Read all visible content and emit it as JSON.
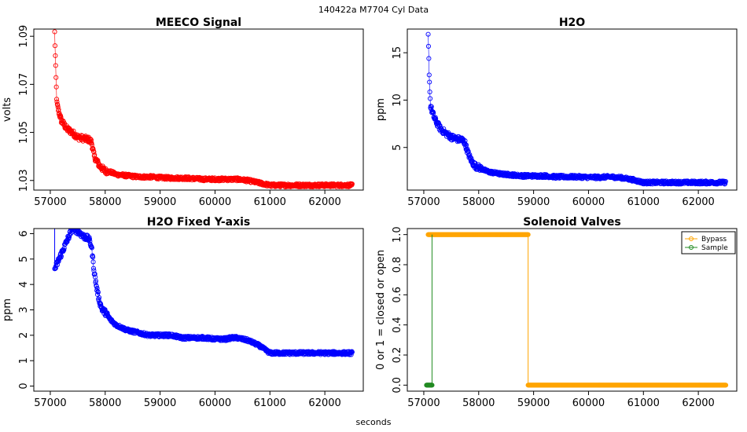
{
  "figure": {
    "suptitle": "140422a    M7704   Cyl Data",
    "xlabel": "seconds"
  },
  "chart_data": [
    {
      "id": "meeco",
      "type": "line",
      "marker": "open-circle",
      "title": "MEECO Signal",
      "xlabel": "",
      "ylabel": "volts",
      "color": "#ff0000",
      "xlim": [
        56700,
        62700
      ],
      "ylim": [
        1.026,
        1.093
      ],
      "xticks": [
        57000,
        58000,
        59000,
        60000,
        61000,
        62000
      ],
      "yticks": [
        1.03,
        1.05,
        1.07,
        1.09
      ],
      "ytick_labels": [
        "1.03",
        "1.05",
        "1.07",
        "1.09"
      ],
      "x": [
        57080,
        57100,
        57120,
        57150,
        57200,
        57300,
        57400,
        57500,
        57600,
        57700,
        57750,
        57800,
        57850,
        57900,
        57950,
        58000,
        58100,
        58200,
        58400,
        58600,
        58800,
        59000,
        59200,
        59400,
        59600,
        59800,
        60000,
        60200,
        60400,
        60600,
        60800,
        61000,
        61200,
        61400,
        61600,
        61800,
        62000,
        62200,
        62500
      ],
      "y": [
        1.0915,
        1.075,
        1.062,
        1.059,
        1.055,
        1.0515,
        1.05,
        1.048,
        1.0475,
        1.047,
        1.046,
        1.04,
        1.038,
        1.036,
        1.035,
        1.034,
        1.0335,
        1.0325,
        1.032,
        1.0315,
        1.0315,
        1.0312,
        1.031,
        1.031,
        1.0308,
        1.0305,
        1.0305,
        1.0305,
        1.0305,
        1.03,
        1.029,
        1.028,
        1.028,
        1.028,
        1.028,
        1.028,
        1.028,
        1.028,
        1.028
      ]
    },
    {
      "id": "h2o",
      "type": "line",
      "marker": "open-circle",
      "title": "H2O",
      "xlabel": "",
      "ylabel": "ppm",
      "color": "#0000ff",
      "xlim": [
        56700,
        62700
      ],
      "ylim": [
        0.5,
        17.5
      ],
      "xticks": [
        57000,
        58000,
        59000,
        60000,
        61000,
        62000
      ],
      "yticks": [
        5,
        10,
        15
      ],
      "ytick_labels": [
        "5",
        "10",
        "15"
      ],
      "x": [
        57080,
        57100,
        57120,
        57150,
        57200,
        57300,
        57400,
        57500,
        57600,
        57700,
        57750,
        57800,
        57850,
        57900,
        57950,
        58000,
        58100,
        58200,
        58400,
        58600,
        58800,
        59000,
        59200,
        59400,
        59600,
        59800,
        60000,
        60200,
        60400,
        60600,
        60800,
        61000,
        61200,
        61400,
        61600,
        61800,
        62000,
        62200,
        62500
      ],
      "y": [
        16.8,
        12.5,
        9.5,
        8.8,
        8.0,
        7.0,
        6.5,
        6.1,
        5.9,
        5.8,
        5.5,
        4.5,
        3.8,
        3.3,
        3.0,
        2.9,
        2.6,
        2.4,
        2.2,
        2.1,
        2.0,
        2.0,
        2.0,
        1.9,
        1.9,
        1.9,
        1.85,
        1.85,
        1.9,
        1.8,
        1.6,
        1.3,
        1.3,
        1.3,
        1.3,
        1.3,
        1.3,
        1.3,
        1.3
      ]
    },
    {
      "id": "h2o-fixed",
      "type": "line",
      "marker": "open-circle",
      "title": "H2O Fixed Y-axis",
      "xlabel": "",
      "ylabel": "ppm",
      "color": "#0000ff",
      "xlim": [
        56700,
        62700
      ],
      "ylim": [
        -0.2,
        6.2
      ],
      "xticks": [
        57000,
        58000,
        59000,
        60000,
        61000,
        62000
      ],
      "yticks": [
        0,
        1,
        2,
        3,
        4,
        5,
        6
      ],
      "ytick_labels": [
        "0",
        "1",
        "2",
        "3",
        "4",
        "5",
        "6"
      ],
      "x": [
        57080,
        57400,
        57500,
        57600,
        57700,
        57750,
        57800,
        57850,
        57900,
        57950,
        58000,
        58100,
        58200,
        58400,
        58600,
        58800,
        59000,
        59200,
        59400,
        59600,
        59800,
        60000,
        60200,
        60300,
        60400,
        60600,
        60800,
        61000,
        61200,
        61400,
        61600,
        61800,
        62000,
        62200,
        62500
      ],
      "y": [
        4.6,
        6.2,
        6.1,
        5.9,
        5.8,
        5.5,
        4.5,
        3.8,
        3.3,
        3.0,
        2.9,
        2.6,
        2.4,
        2.2,
        2.1,
        2.0,
        2.0,
        2.0,
        1.9,
        1.9,
        1.9,
        1.85,
        1.85,
        1.9,
        1.9,
        1.8,
        1.6,
        1.3,
        1.3,
        1.3,
        1.3,
        1.3,
        1.3,
        1.3,
        1.3
      ]
    },
    {
      "id": "solenoid",
      "type": "line",
      "marker": "open-circle",
      "title": "Solenoid Valves",
      "xlabel": "",
      "ylabel": "0 or 1 = closed or open",
      "xlim": [
        56700,
        62700
      ],
      "ylim": [
        -0.04,
        1.04
      ],
      "xticks": [
        57000,
        58000,
        59000,
        60000,
        61000,
        62000
      ],
      "yticks": [
        0.0,
        0.2,
        0.4,
        0.6,
        0.8,
        1.0
      ],
      "ytick_labels": [
        "0.0",
        "0.2",
        "0.4",
        "0.6",
        "0.8",
        "1.0"
      ],
      "legend_position": "top-right",
      "series": [
        {
          "name": "Bypass",
          "color": "#ffa500",
          "x": [
            57080,
            58900,
            58900,
            62500
          ],
          "y": [
            1,
            1,
            0,
            0
          ]
        },
        {
          "name": "Sample",
          "color": "#228b22",
          "x": [
            57050,
            57150,
            57150
          ],
          "y": [
            0,
            0,
            1
          ]
        }
      ]
    }
  ]
}
